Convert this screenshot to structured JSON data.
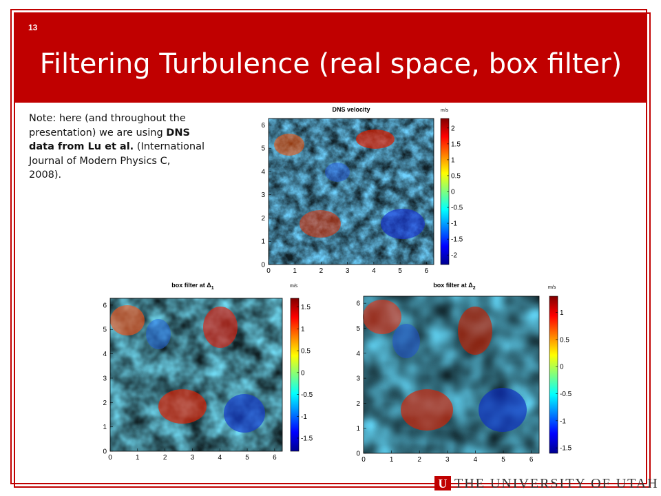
{
  "slide": {
    "number": "13",
    "title": "Filtering Turbulence (real space, box filter)"
  },
  "note": {
    "part1": "Note: here (and throughout the presentation) we are using ",
    "bold": "DNS data from Lu et al.",
    "part2": " (International Journal of Modern Physics C, 2008)."
  },
  "footer": {
    "logo_letter": "U",
    "wordmark": "THE UNIVERSITY OF UTAH"
  },
  "colors": {
    "accent": "#c00000"
  },
  "chart_data": [
    {
      "type": "heatmap",
      "title": "DNS velocity",
      "xlim": [
        0,
        6.28
      ],
      "ylim": [
        0,
        6.28
      ],
      "xticks": [
        0,
        1,
        2,
        3,
        4,
        5,
        6
      ],
      "yticks": [
        0,
        1,
        2,
        3,
        4,
        5,
        6
      ],
      "colorbar": {
        "unit": "m/s",
        "ticks": [
          2,
          1.5,
          1,
          0.5,
          0,
          -0.5,
          -1,
          -1.5,
          -2
        ],
        "range": [
          -2.3,
          2.3
        ]
      },
      "grid": false
    },
    {
      "type": "heatmap",
      "title": "box filter at Δ",
      "title_sub": "1",
      "xlim": [
        0,
        6.28
      ],
      "ylim": [
        0,
        6.28
      ],
      "xticks": [
        0,
        1,
        2,
        3,
        4,
        5,
        6
      ],
      "yticks": [
        0,
        1,
        2,
        3,
        4,
        5,
        6
      ],
      "colorbar": {
        "unit": "m/s",
        "ticks": [
          1.5,
          1,
          0.5,
          0,
          -0.5,
          -1,
          -1.5
        ],
        "range": [
          -1.8,
          1.7
        ]
      },
      "grid": false
    },
    {
      "type": "heatmap",
      "title": "box filter at Δ",
      "title_sub": "2",
      "xlim": [
        0,
        6.28
      ],
      "ylim": [
        0,
        6.28
      ],
      "xticks": [
        0,
        1,
        2,
        3,
        4,
        5,
        6
      ],
      "yticks": [
        0,
        1,
        2,
        3,
        4,
        5,
        6
      ],
      "colorbar": {
        "unit": "m/s",
        "ticks": [
          1,
          0.5,
          0,
          -0.5,
          -1,
          -1.5
        ],
        "range": [
          -1.6,
          1.3
        ]
      },
      "grid": false
    }
  ]
}
